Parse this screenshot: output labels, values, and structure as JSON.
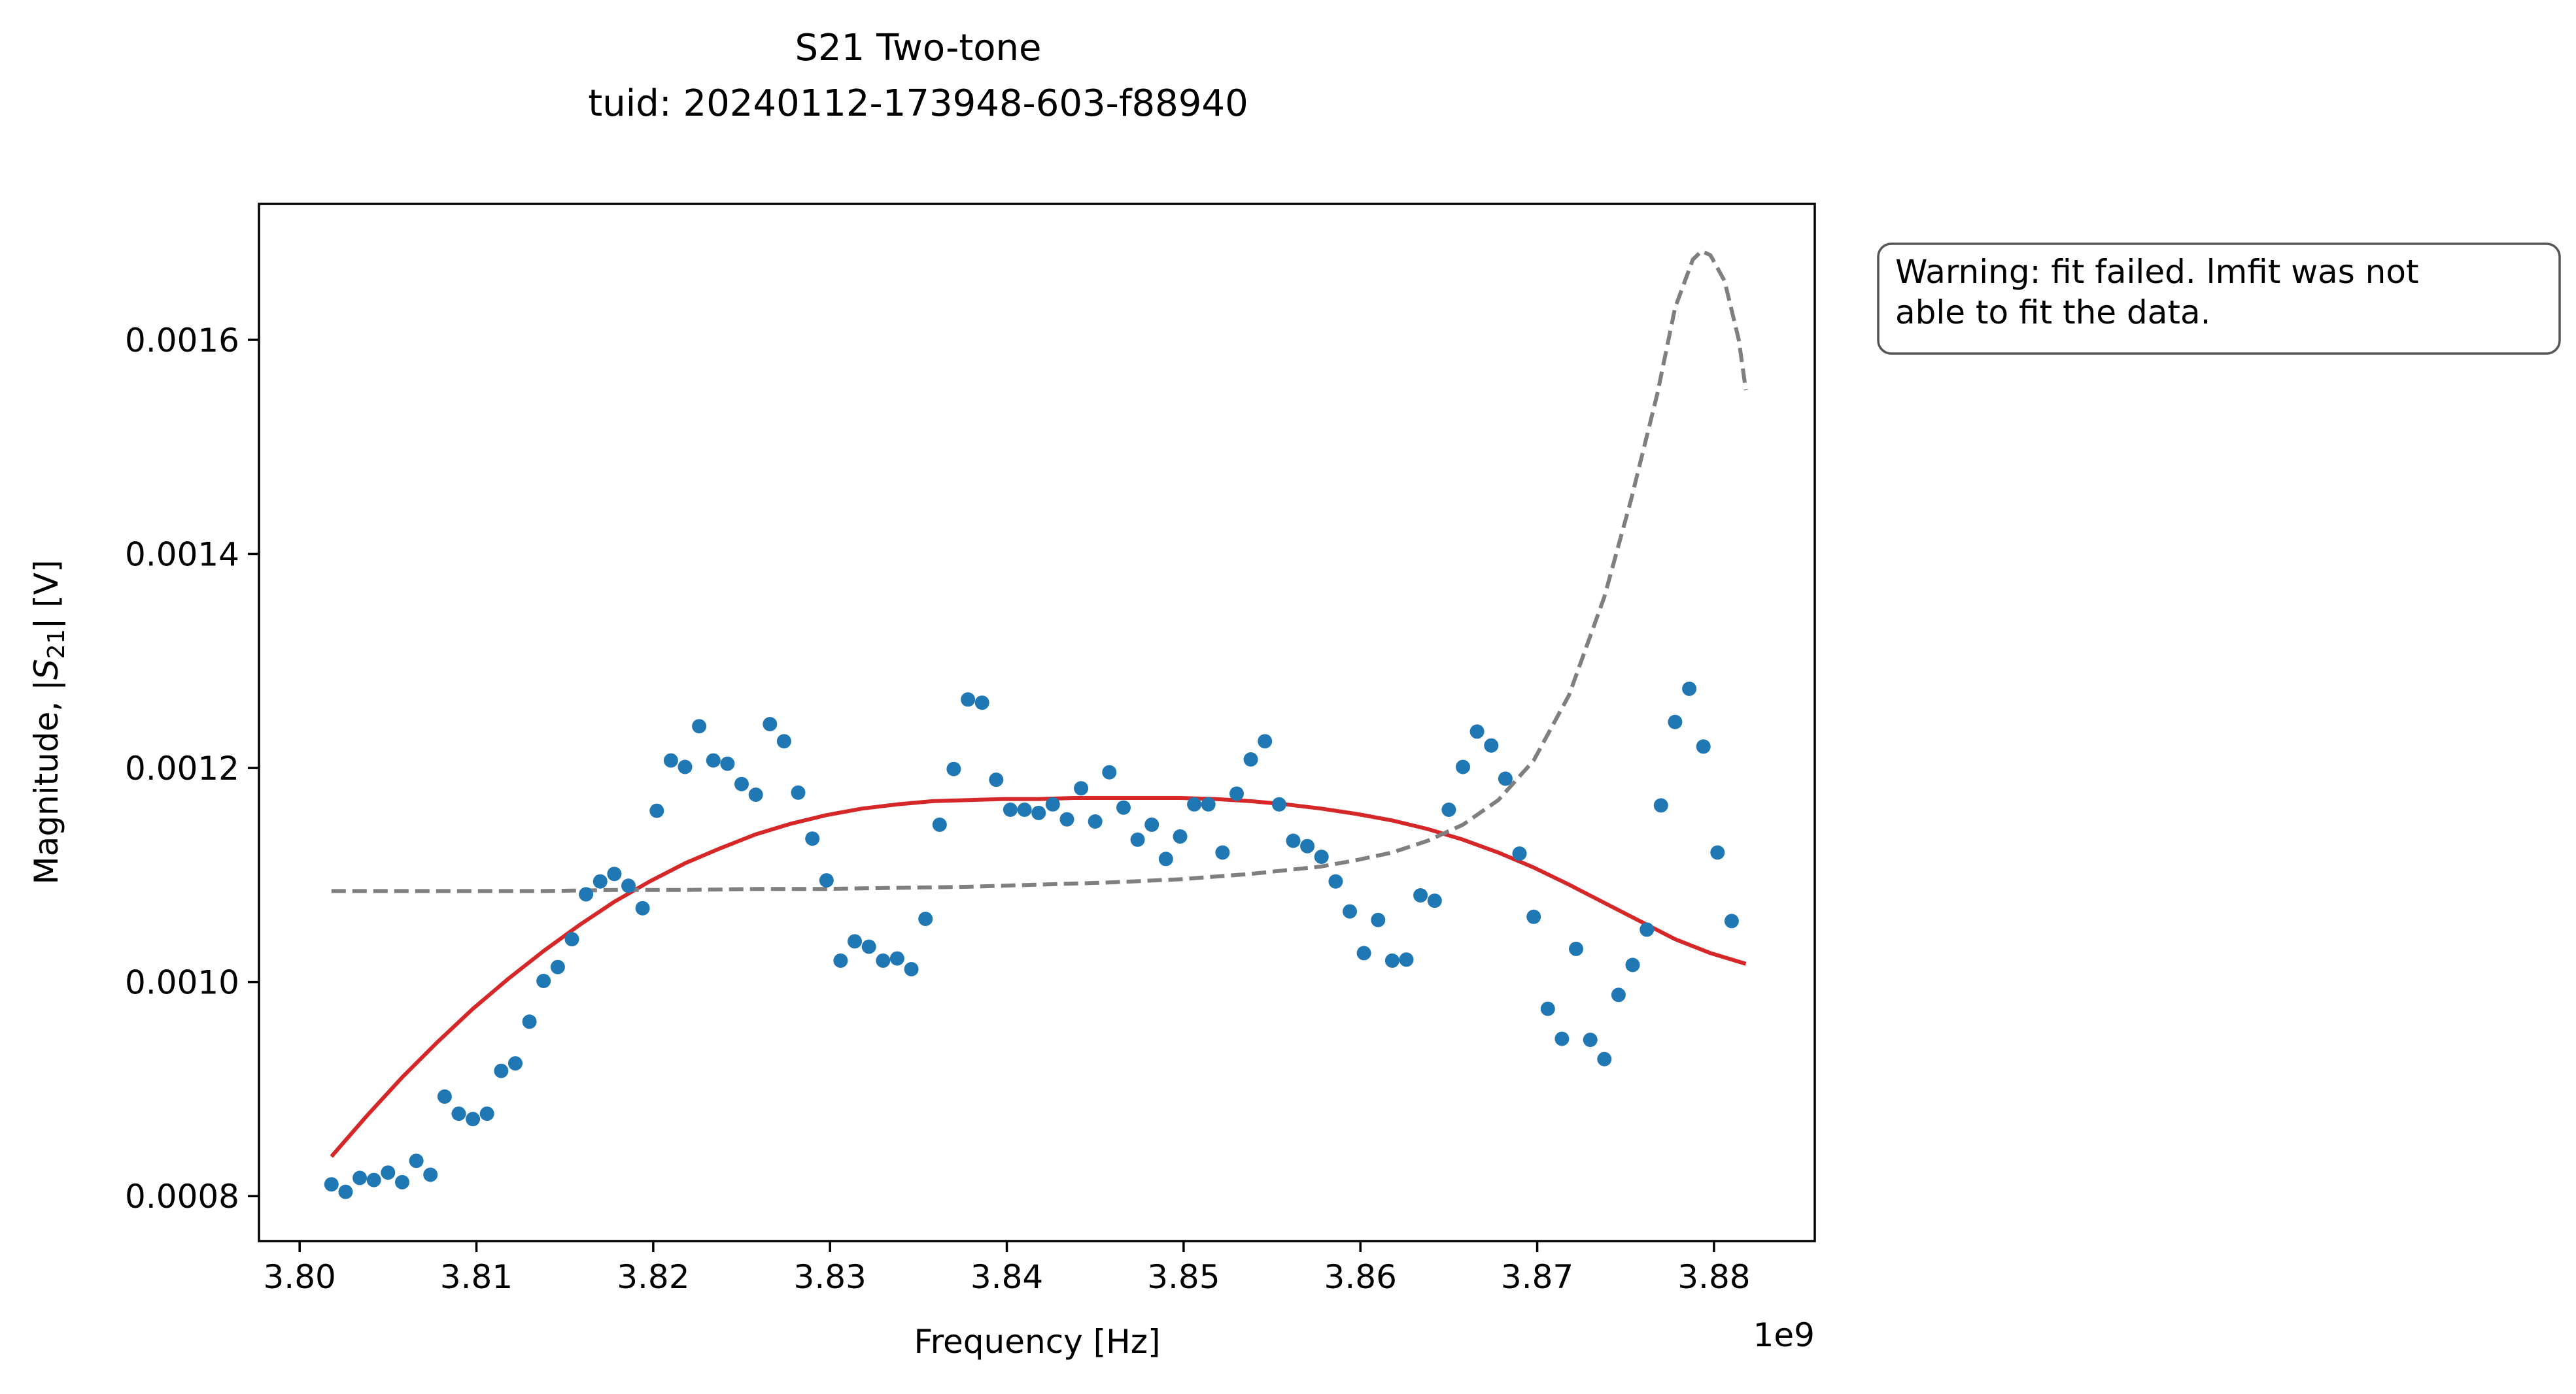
{
  "chart_data": {
    "type": "scatter",
    "title": "S21 Two-tone",
    "subtitle": "tuid: 20240112-173948-603-f88940",
    "xlabel": "Frequency [Hz]",
    "ylabel_prefix": "Magnitude, |",
    "ylabel_symbol": "S",
    "ylabel_subscript": "21",
    "ylabel_suffix": "| [V]",
    "x_offset_label": "1e9",
    "xlim": [
      3797700000.0,
      3885700000.0
    ],
    "ylim": [
      0.000758,
      0.001727
    ],
    "x_ticks": [
      3800000000.0,
      3810000000.0,
      3820000000.0,
      3830000000.0,
      3840000000.0,
      3850000000.0,
      3860000000.0,
      3870000000.0,
      3880000000.0
    ],
    "x_tick_labels": [
      "3.80",
      "3.81",
      "3.82",
      "3.83",
      "3.84",
      "3.85",
      "3.86",
      "3.87",
      "3.88"
    ],
    "y_ticks": [
      0.0008,
      0.001,
      0.0012,
      0.0014,
      0.0016
    ],
    "y_tick_labels": [
      "0.0008",
      "0.0010",
      "0.0012",
      "0.0014",
      "0.0016"
    ],
    "grid": false,
    "annotation": "Warning: fit failed. lmfit was not\nable to fit the data.",
    "series": [
      {
        "kind": "scatter",
        "color": "#1f77b4",
        "points": [
          [
            3801800000.0,
            0.000811
          ],
          [
            3802600000.0,
            0.000804
          ],
          [
            3803400000.0,
            0.000817
          ],
          [
            3804200000.0,
            0.000815
          ],
          [
            3805000000.0,
            0.000822
          ],
          [
            3805800000.0,
            0.000813
          ],
          [
            3806600000.0,
            0.000833
          ],
          [
            3807400000.0,
            0.00082
          ],
          [
            3808200000.0,
            0.000893
          ],
          [
            3809000000.0,
            0.000877
          ],
          [
            3809800000.0,
            0.000872
          ],
          [
            3810600000.0,
            0.000877
          ],
          [
            3811400000.0,
            0.000917
          ],
          [
            3812200000.0,
            0.000924
          ],
          [
            3813000000.0,
            0.000963
          ],
          [
            3813800000.0,
            0.001001
          ],
          [
            3814600000.0,
            0.001014
          ],
          [
            3815400000.0,
            0.00104
          ],
          [
            3816200000.0,
            0.001082
          ],
          [
            3817000000.0,
            0.001094
          ],
          [
            3817800000.0,
            0.001101
          ],
          [
            3818600000.0,
            0.00109
          ],
          [
            3819400000.0,
            0.001069
          ],
          [
            3820200000.0,
            0.00116
          ],
          [
            3821000000.0,
            0.001207
          ],
          [
            3821800000.0,
            0.001201
          ],
          [
            3822600000.0,
            0.001239
          ],
          [
            3823400000.0,
            0.001207
          ],
          [
            3824200000.0,
            0.001204
          ],
          [
            3825000000.0,
            0.001185
          ],
          [
            3825800000.0,
            0.001175
          ],
          [
            3826600000.0,
            0.001241
          ],
          [
            3827400000.0,
            0.001225
          ],
          [
            3828200000.0,
            0.001177
          ],
          [
            3829000000.0,
            0.001134
          ],
          [
            3829800000.0,
            0.001095
          ],
          [
            3830600000.0,
            0.00102
          ],
          [
            3831400000.0,
            0.001038
          ],
          [
            3832200000.0,
            0.001033
          ],
          [
            3833000000.0,
            0.00102
          ],
          [
            3833800000.0,
            0.001022
          ],
          [
            3834600000.0,
            0.001012
          ],
          [
            3835400000.0,
            0.001059
          ],
          [
            3836200000.0,
            0.001147
          ],
          [
            3837000000.0,
            0.001199
          ],
          [
            3837800000.0,
            0.001264
          ],
          [
            3838600000.0,
            0.001261
          ],
          [
            3839400000.0,
            0.001189
          ],
          [
            3840200000.0,
            0.001161
          ],
          [
            3841000000.0,
            0.001161
          ],
          [
            3841800000.0,
            0.001158
          ],
          [
            3842600000.0,
            0.001166
          ],
          [
            3843400000.0,
            0.001152
          ],
          [
            3844200000.0,
            0.001181
          ],
          [
            3845000000.0,
            0.00115
          ],
          [
            3845800000.0,
            0.001196
          ],
          [
            3846600000.0,
            0.001163
          ],
          [
            3847400000.0,
            0.001133
          ],
          [
            3848200000.0,
            0.001147
          ],
          [
            3849000000.0,
            0.001115
          ],
          [
            3849800000.0,
            0.001136
          ],
          [
            3850600000.0,
            0.001166
          ],
          [
            3851400000.0,
            0.001166
          ],
          [
            3852200000.0,
            0.001121
          ],
          [
            3853000000.0,
            0.001176
          ],
          [
            3853800000.0,
            0.001208
          ],
          [
            3854600000.0,
            0.001225
          ],
          [
            3855400000.0,
            0.001166
          ],
          [
            3856200000.0,
            0.001132
          ],
          [
            3857000000.0,
            0.001127
          ],
          [
            3857800000.0,
            0.001117
          ],
          [
            3858600000.0,
            0.001094
          ],
          [
            3859400000.0,
            0.001066
          ],
          [
            3860200000.0,
            0.001027
          ],
          [
            3861000000.0,
            0.001058
          ],
          [
            3861800000.0,
            0.00102
          ],
          [
            3862600000.0,
            0.001021
          ],
          [
            3863400000.0,
            0.001081
          ],
          [
            3864200000.0,
            0.001076
          ],
          [
            3865000000.0,
            0.001161
          ],
          [
            3865800000.0,
            0.001201
          ],
          [
            3866600000.0,
            0.001234
          ],
          [
            3867400000.0,
            0.001221
          ],
          [
            3868200000.0,
            0.00119
          ],
          [
            3869000000.0,
            0.00112
          ],
          [
            3869800000.0,
            0.001061
          ],
          [
            3870600000.0,
            0.000975
          ],
          [
            3871400000.0,
            0.000947
          ],
          [
            3872200000.0,
            0.001031
          ],
          [
            3873000000.0,
            0.000946
          ],
          [
            3873800000.0,
            0.000928
          ],
          [
            3874600000.0,
            0.000988
          ],
          [
            3875400000.0,
            0.001016
          ],
          [
            3876200000.0,
            0.001049
          ],
          [
            3877000000.0,
            0.001165
          ],
          [
            3877800000.0,
            0.001243
          ],
          [
            3878600000.0,
            0.001274
          ],
          [
            3879400000.0,
            0.00122
          ],
          [
            3880200000.0,
            0.001121
          ],
          [
            3881000000.0,
            0.001057
          ]
        ]
      },
      {
        "kind": "line",
        "color": "#d62728",
        "style": "solid",
        "points": [
          [
            3801800000.0,
            0.000837
          ],
          [
            3803800000.0,
            0.000875
          ],
          [
            3805800000.0,
            0.000911
          ],
          [
            3807800000.0,
            0.000944
          ],
          [
            3809800000.0,
            0.000975
          ],
          [
            3811800000.0,
            0.001003
          ],
          [
            3813800000.0,
            0.001029
          ],
          [
            3815800000.0,
            0.001053
          ],
          [
            3817800000.0,
            0.001075
          ],
          [
            3819800000.0,
            0.001094
          ],
          [
            3821800000.0,
            0.001111
          ],
          [
            3823800000.0,
            0.001125
          ],
          [
            3825800000.0,
            0.001138
          ],
          [
            3827800000.0,
            0.001148
          ],
          [
            3829800000.0,
            0.001156
          ],
          [
            3831800000.0,
            0.001162
          ],
          [
            3833800000.0,
            0.001166
          ],
          [
            3835800000.0,
            0.001169
          ],
          [
            3837800000.0,
            0.00117
          ],
          [
            3839800000.0,
            0.001171
          ],
          [
            3841800000.0,
            0.001171
          ],
          [
            3843800000.0,
            0.001172
          ],
          [
            3845800000.0,
            0.001172
          ],
          [
            3847800000.0,
            0.001172
          ],
          [
            3849800000.0,
            0.001172
          ],
          [
            3851800000.0,
            0.001171
          ],
          [
            3853800000.0,
            0.001169
          ],
          [
            3855800000.0,
            0.001166
          ],
          [
            3857800000.0,
            0.001162
          ],
          [
            3859800000.0,
            0.001157
          ],
          [
            3861800000.0,
            0.001151
          ],
          [
            3863800000.0,
            0.001143
          ],
          [
            3865800000.0,
            0.001133
          ],
          [
            3867800000.0,
            0.001121
          ],
          [
            3869800000.0,
            0.001107
          ],
          [
            3871800000.0,
            0.001091
          ],
          [
            3873800000.0,
            0.001074
          ],
          [
            3875800000.0,
            0.001057
          ],
          [
            3877800000.0,
            0.00104
          ],
          [
            3879800000.0,
            0.001027
          ],
          [
            3881800000.0,
            0.001017
          ]
        ]
      },
      {
        "kind": "line",
        "color": "#7f7f7f",
        "style": "dashed",
        "points": [
          [
            3801800000.0,
            0.001085
          ],
          [
            3805800000.0,
            0.001085
          ],
          [
            3809800000.0,
            0.001085
          ],
          [
            3813800000.0,
            0.001085
          ],
          [
            3817800000.0,
            0.001086
          ],
          [
            3821800000.0,
            0.001086
          ],
          [
            3825800000.0,
            0.001087
          ],
          [
            3829800000.0,
            0.001087
          ],
          [
            3833800000.0,
            0.001088
          ],
          [
            3837800000.0,
            0.001089
          ],
          [
            3841800000.0,
            0.001091
          ],
          [
            3845800000.0,
            0.001093
          ],
          [
            3849800000.0,
            0.001096
          ],
          [
            3853800000.0,
            0.001101
          ],
          [
            3857800000.0,
            0.001108
          ],
          [
            3859800000.0,
            0.001114
          ],
          [
            3861800000.0,
            0.001121
          ],
          [
            3863800000.0,
            0.001132
          ],
          [
            3865800000.0,
            0.001147
          ],
          [
            3867800000.0,
            0.00117
          ],
          [
            3869800000.0,
            0.001207
          ],
          [
            3871800000.0,
            0.001268
          ],
          [
            3873800000.0,
            0.00136
          ],
          [
            3875300000.0,
            0.00145
          ],
          [
            3876800000.0,
            0.00155
          ],
          [
            3877800000.0,
            0.00163
          ],
          [
            3878800000.0,
            0.001675
          ],
          [
            3879300000.0,
            0.001683
          ],
          [
            3879800000.0,
            0.001679
          ],
          [
            3880600000.0,
            0.001655
          ],
          [
            3881400000.0,
            0.0016
          ],
          [
            3881800000.0,
            0.001553
          ]
        ]
      }
    ]
  }
}
